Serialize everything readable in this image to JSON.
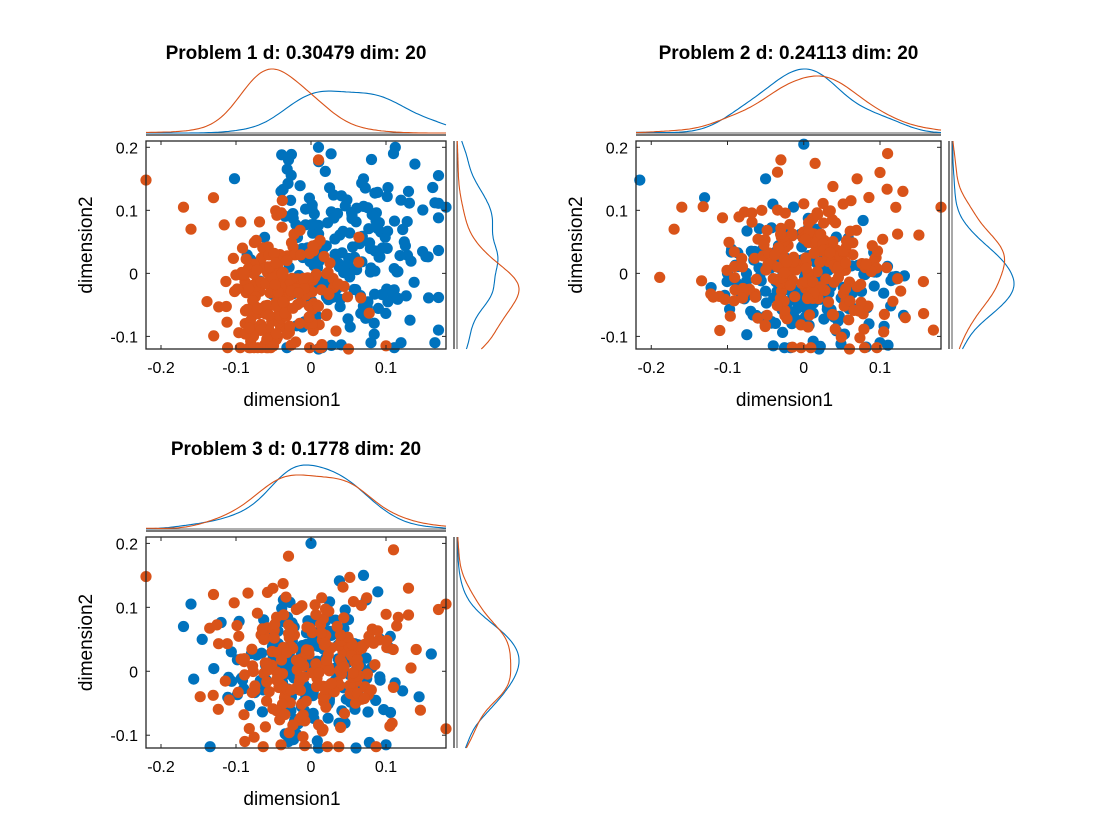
{
  "colors": {
    "blue": "#0072BD",
    "orange": "#D95319"
  },
  "marker": "filled-circle",
  "chart_data": [
    {
      "type": "scatter",
      "title": "Problem 1 d: 0.30479 dim: 20",
      "xlabel": "dimension1",
      "ylabel": "dimension2",
      "xlim": [
        -0.22,
        0.18
      ],
      "ylim": [
        -0.12,
        0.21
      ],
      "xticks": [
        -0.2,
        -0.1,
        0,
        0.1
      ],
      "xtick_labels": [
        "-0.2",
        "-0.1",
        "0",
        "0.1"
      ],
      "yticks": [
        -0.1,
        0,
        0.1,
        0.2
      ],
      "ytick_labels": [
        "-0.1",
        "0",
        "0.1",
        "0.2"
      ],
      "grid": false,
      "marginal_kde": {
        "top": true,
        "right": true
      },
      "series": [
        {
          "color": "blue",
          "cloud": {
            "cx": 0.045,
            "cy": 0.03,
            "sx": 0.055,
            "sy": 0.07,
            "n": 200,
            "seed": 11
          },
          "points": [
            [
              0.01,
              0.2
            ],
            [
              0.11,
              0.19
            ],
            [
              -0.03,
              0.18
            ],
            [
              0.07,
              0.15
            ],
            [
              0.13,
              0.13
            ],
            [
              0.18,
              0.105
            ],
            [
              0.17,
              -0.09
            ],
            [
              0.12,
              -0.11
            ],
            [
              0.01,
              -0.12
            ],
            [
              0.08,
              -0.11
            ],
            [
              -0.04,
              0.13
            ]
          ]
        },
        {
          "color": "orange",
          "cloud": {
            "cx": -0.04,
            "cy": -0.03,
            "sx": 0.04,
            "sy": 0.05,
            "n": 230,
            "seed": 29
          },
          "points": [
            [
              -0.22,
              0.148
            ],
            [
              0.01,
              0.18
            ],
            [
              -0.13,
              0.12
            ],
            [
              -0.17,
              0.105
            ],
            [
              -0.16,
              0.07
            ],
            [
              0.1,
              -0.115
            ],
            [
              -0.05,
              -0.115
            ],
            [
              0.05,
              -0.12
            ]
          ]
        }
      ]
    },
    {
      "type": "scatter",
      "title": "Problem 2 d: 0.24113 dim: 20",
      "xlabel": "dimension1",
      "ylabel": "dimension2",
      "xlim": [
        -0.22,
        0.18
      ],
      "ylim": [
        -0.12,
        0.21
      ],
      "xticks": [
        -0.2,
        -0.1,
        0,
        0.1
      ],
      "xtick_labels": [
        "-0.2",
        "-0.1",
        "0",
        "0.1"
      ],
      "yticks": [
        -0.1,
        0,
        0.1,
        0.2
      ],
      "ytick_labels": [
        "-0.1",
        "0",
        "0.1",
        "0.2"
      ],
      "grid": false,
      "marginal_kde": {
        "top": true,
        "right": true
      },
      "series": [
        {
          "color": "blue",
          "cloud": {
            "cx": 0.0,
            "cy": -0.01,
            "sx": 0.05,
            "sy": 0.05,
            "n": 200,
            "seed": 11
          },
          "points": [
            [
              0.0,
              0.205
            ],
            [
              -0.215,
              0.148
            ],
            [
              -0.13,
              0.12
            ],
            [
              -0.05,
              0.15
            ],
            [
              -0.04,
              -0.115
            ],
            [
              0.02,
              -0.12
            ],
            [
              0.1,
              -0.11
            ],
            [
              -0.1,
              0.0
            ]
          ]
        },
        {
          "color": "orange",
          "cloud": {
            "cx": 0.01,
            "cy": 0.01,
            "sx": 0.06,
            "sy": 0.06,
            "n": 230,
            "seed": 29
          },
          "points": [
            [
              0.11,
              0.19
            ],
            [
              -0.03,
              0.18
            ],
            [
              0.07,
              0.15
            ],
            [
              0.1,
              0.16
            ],
            [
              0.13,
              0.13
            ],
            [
              0.18,
              0.105
            ],
            [
              0.17,
              -0.09
            ],
            [
              0.06,
              -0.12
            ],
            [
              -0.17,
              0.07
            ],
            [
              -0.16,
              0.105
            ]
          ]
        }
      ]
    },
    {
      "type": "scatter",
      "title": "Problem 3 d: 0.1778 dim: 20",
      "xlabel": "dimension1",
      "ylabel": "dimension2",
      "xlim": [
        -0.22,
        0.18
      ],
      "ylim": [
        -0.12,
        0.21
      ],
      "xticks": [
        -0.2,
        -0.1,
        0,
        0.1
      ],
      "xtick_labels": [
        "-0.2",
        "-0.1",
        "0",
        "0.1"
      ],
      "yticks": [
        -0.1,
        0,
        0.1,
        0.2
      ],
      "ytick_labels": [
        "-0.1",
        "0",
        "0.1",
        "0.2"
      ],
      "grid": false,
      "marginal_kde": {
        "top": true,
        "right": true
      },
      "series": [
        {
          "color": "blue",
          "cloud": {
            "cx": 0.0,
            "cy": 0.0,
            "sx": 0.055,
            "sy": 0.055,
            "n": 200,
            "seed": 11
          },
          "points": [
            [
              0.0,
              0.2
            ],
            [
              -0.17,
              0.07
            ],
            [
              -0.16,
              0.105
            ],
            [
              0.07,
              0.15
            ],
            [
              0.01,
              -0.12
            ],
            [
              0.06,
              -0.12
            ],
            [
              0.1,
              -0.115
            ],
            [
              -0.03,
              -0.11
            ]
          ]
        },
        {
          "color": "orange",
          "cloud": {
            "cx": 0.0,
            "cy": 0.01,
            "sx": 0.06,
            "sy": 0.06,
            "n": 230,
            "seed": 29
          },
          "points": [
            [
              -0.22,
              0.148
            ],
            [
              0.11,
              0.19
            ],
            [
              -0.03,
              0.18
            ],
            [
              0.13,
              0.13
            ],
            [
              0.18,
              0.105
            ],
            [
              0.18,
              -0.09
            ],
            [
              -0.13,
              0.12
            ],
            [
              -0.04,
              -0.115
            ]
          ]
        }
      ]
    }
  ]
}
